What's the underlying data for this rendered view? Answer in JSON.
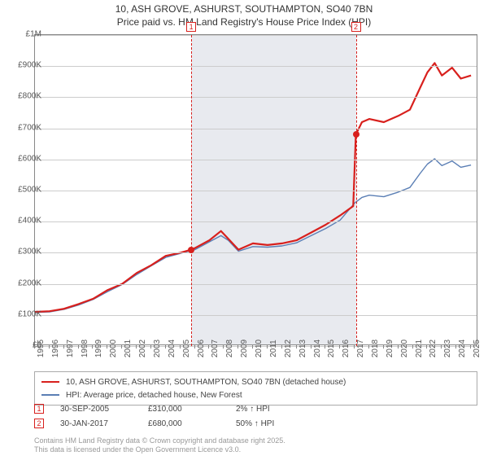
{
  "title": {
    "line1": "10, ASH GROVE, ASHURST, SOUTHAMPTON, SO40 7BN",
    "line2": "Price paid vs. HM Land Registry's House Price Index (HPI)"
  },
  "chart": {
    "type": "line",
    "background_color": "#ffffff",
    "plot_shade_color": "#e8eaef",
    "grid_color": "#cccccc",
    "axis_color": "#888888",
    "xlim": [
      1995,
      2025.5
    ],
    "ylim": [
      0,
      1000000
    ],
    "y_ticks": [
      0,
      100000,
      200000,
      300000,
      400000,
      500000,
      600000,
      700000,
      800000,
      900000,
      1000000
    ],
    "y_tick_labels": [
      "£0",
      "£100K",
      "£200K",
      "£300K",
      "£400K",
      "£500K",
      "£600K",
      "£700K",
      "£800K",
      "£900K",
      "£1M"
    ],
    "x_ticks": [
      1995,
      1996,
      1997,
      1998,
      1999,
      2000,
      2001,
      2002,
      2003,
      2004,
      2005,
      2006,
      2007,
      2008,
      2009,
      2010,
      2011,
      2012,
      2013,
      2014,
      2015,
      2016,
      2017,
      2018,
      2019,
      2020,
      2021,
      2022,
      2023,
      2024,
      2025
    ],
    "shaded_ranges": [
      [
        2005.75,
        2017.08
      ]
    ],
    "series": [
      {
        "name": "price_paid",
        "label": "10, ASH GROVE, ASHURST, SOUTHAMPTON, SO40 7BN (detached house)",
        "color": "#d8201d",
        "line_width": 2.2,
        "points": [
          [
            1995,
            110000
          ],
          [
            1996,
            112000
          ],
          [
            1997,
            120000
          ],
          [
            1998,
            135000
          ],
          [
            1999,
            152000
          ],
          [
            2000,
            180000
          ],
          [
            2001,
            200000
          ],
          [
            2002,
            235000
          ],
          [
            2003,
            260000
          ],
          [
            2004,
            290000
          ],
          [
            2005,
            300000
          ],
          [
            2005.75,
            310000
          ],
          [
            2006,
            315000
          ],
          [
            2007,
            340000
          ],
          [
            2007.8,
            370000
          ],
          [
            2008.3,
            345000
          ],
          [
            2009,
            310000
          ],
          [
            2010,
            330000
          ],
          [
            2011,
            325000
          ],
          [
            2012,
            330000
          ],
          [
            2013,
            340000
          ],
          [
            2014,
            365000
          ],
          [
            2015,
            390000
          ],
          [
            2016,
            420000
          ],
          [
            2016.9,
            450000
          ],
          [
            2017.08,
            680000
          ],
          [
            2017.5,
            720000
          ],
          [
            2018,
            730000
          ],
          [
            2019,
            720000
          ],
          [
            2020,
            740000
          ],
          [
            2020.8,
            760000
          ],
          [
            2021.5,
            830000
          ],
          [
            2022,
            880000
          ],
          [
            2022.5,
            910000
          ],
          [
            2023,
            870000
          ],
          [
            2023.7,
            895000
          ],
          [
            2024.3,
            860000
          ],
          [
            2025,
            870000
          ]
        ]
      },
      {
        "name": "hpi",
        "label": "HPI: Average price, detached house, New Forest",
        "color": "#5b7fb5",
        "line_width": 1.4,
        "points": [
          [
            1995,
            108000
          ],
          [
            1996,
            110000
          ],
          [
            1997,
            118000
          ],
          [
            1998,
            132000
          ],
          [
            1999,
            150000
          ],
          [
            2000,
            175000
          ],
          [
            2001,
            198000
          ],
          [
            2002,
            230000
          ],
          [
            2003,
            258000
          ],
          [
            2004,
            285000
          ],
          [
            2005,
            298000
          ],
          [
            2006,
            310000
          ],
          [
            2007,
            335000
          ],
          [
            2007.8,
            355000
          ],
          [
            2008.3,
            340000
          ],
          [
            2009,
            305000
          ],
          [
            2010,
            320000
          ],
          [
            2011,
            318000
          ],
          [
            2012,
            322000
          ],
          [
            2013,
            332000
          ],
          [
            2014,
            355000
          ],
          [
            2015,
            378000
          ],
          [
            2016,
            405000
          ],
          [
            2017,
            460000
          ],
          [
            2017.5,
            478000
          ],
          [
            2018,
            485000
          ],
          [
            2019,
            480000
          ],
          [
            2020,
            495000
          ],
          [
            2020.8,
            510000
          ],
          [
            2021.5,
            555000
          ],
          [
            2022,
            585000
          ],
          [
            2022.5,
            602000
          ],
          [
            2023,
            580000
          ],
          [
            2023.7,
            595000
          ],
          [
            2024.3,
            575000
          ],
          [
            2025,
            582000
          ]
        ]
      }
    ],
    "markers": [
      {
        "id": "1",
        "x": 2005.75,
        "y": 310000,
        "color": "#d8201d"
      },
      {
        "id": "2",
        "x": 2017.08,
        "y": 680000,
        "color": "#d8201d"
      }
    ]
  },
  "legend": {
    "rows": [
      {
        "color": "#d8201d",
        "width": 2.5,
        "label": "10, ASH GROVE, ASHURST, SOUTHAMPTON, SO40 7BN (detached house)"
      },
      {
        "color": "#5b7fb5",
        "width": 1.5,
        "label": "HPI: Average price, detached house, New Forest"
      }
    ]
  },
  "annotations": [
    {
      "id": "1",
      "color": "#d8201d",
      "date": "30-SEP-2005",
      "price": "£310,000",
      "delta": "2% ↑ HPI"
    },
    {
      "id": "2",
      "color": "#d8201d",
      "date": "30-JAN-2017",
      "price": "£680,000",
      "delta": "50% ↑ HPI"
    }
  ],
  "footer": {
    "line1": "Contains HM Land Registry data © Crown copyright and database right 2025.",
    "line2": "This data is licensed under the Open Government Licence v3.0."
  }
}
